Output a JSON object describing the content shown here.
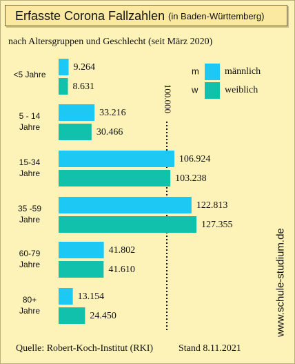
{
  "title": "Erfasste Corona Fallzahlen",
  "title_region": "(in Baden-Württemberg)",
  "subtitle": "nach Altersgruppen und Geschlecht (seit März 2020)",
  "source": "Quelle: Robert-Koch-Institut (RKI)",
  "date": "Stand 8.11.2021",
  "watermark": "www.schule-studium.de",
  "colors": {
    "background": "#fdf2b8",
    "title_box": "#fbe9a2",
    "maennlich": "#1ec8f4",
    "weiblich": "#12c1ac"
  },
  "chart_data": {
    "type": "bar",
    "orientation": "horizontal",
    "categories": [
      [
        "<5 Jahre"
      ],
      [
        "5 - 14",
        "Jahre"
      ],
      [
        "15-34",
        "Jahre"
      ],
      [
        "35 -59",
        "Jahre"
      ],
      [
        "60-79",
        "Jahre"
      ],
      [
        "80+",
        "Jahre"
      ]
    ],
    "series": [
      {
        "key": "m",
        "name": "männlich",
        "color": "#1ec8f4",
        "values": [
          9264,
          33216,
          106924,
          122813,
          41802,
          13154
        ],
        "labels": [
          "9.264",
          "33.216",
          "106.924",
          "122.813",
          "41.802",
          "13.154"
        ]
      },
      {
        "key": "w",
        "name": "weiblich",
        "color": "#12c1ac",
        "values": [
          8631,
          30466,
          103238,
          127355,
          41610,
          24450
        ],
        "labels": [
          "8.631",
          "30.466",
          "103.238",
          "127.355",
          "41.610",
          "24.450"
        ]
      }
    ],
    "reference_line": {
      "value": 100000,
      "label": "100.000",
      "style": "dotted"
    },
    "xlim": [
      0,
      127355
    ],
    "grid": false,
    "legend": "top-right"
  }
}
